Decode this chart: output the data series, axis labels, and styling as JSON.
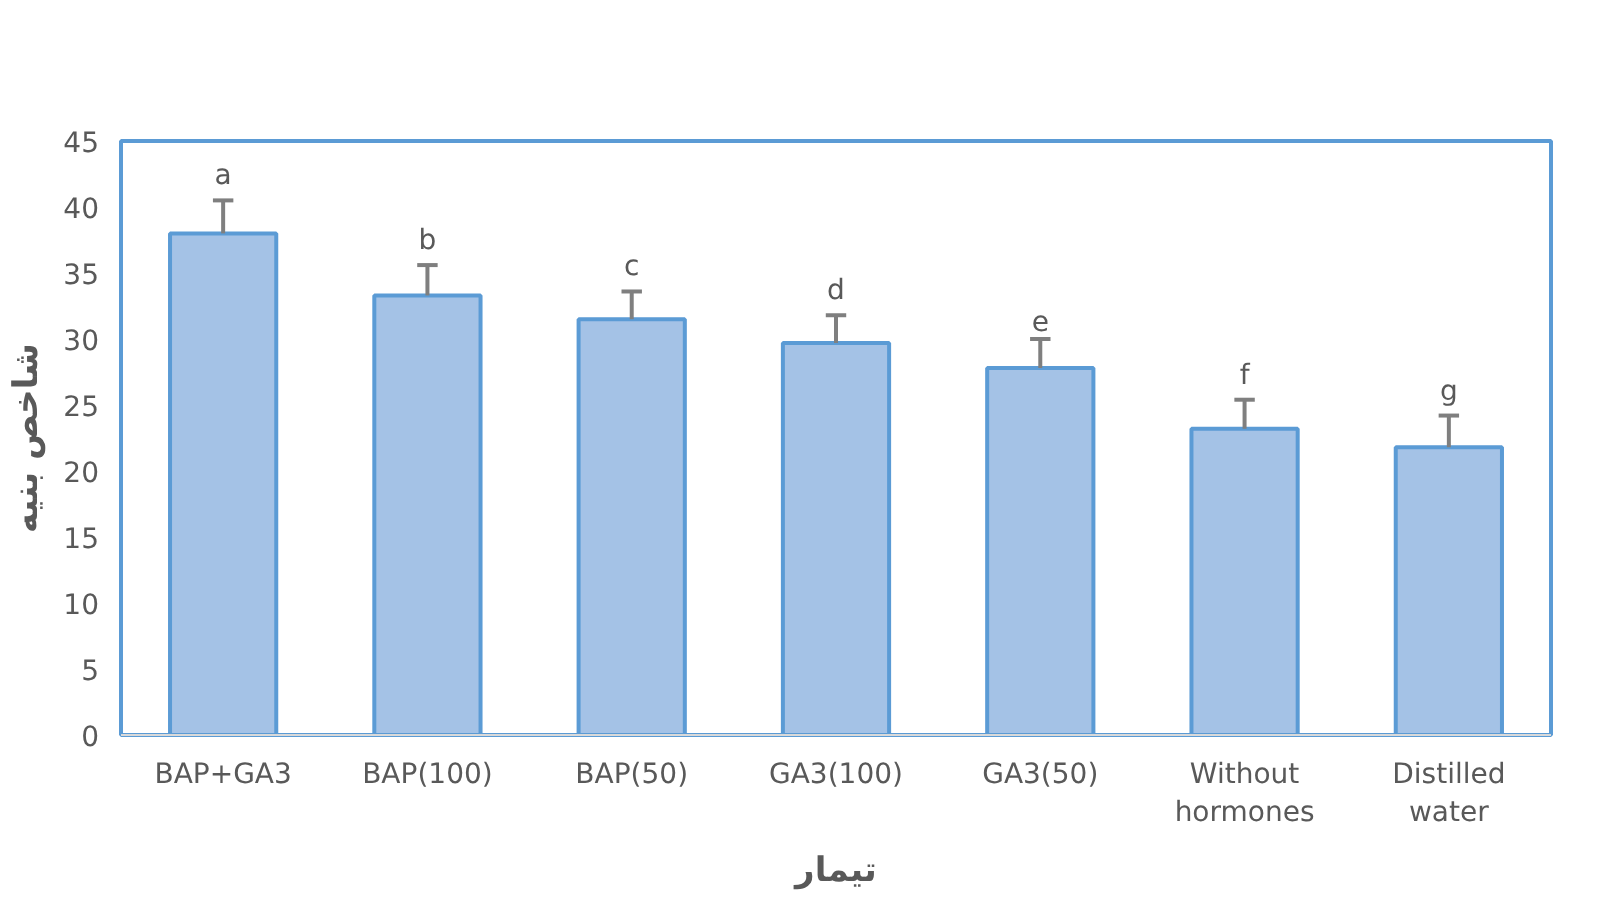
{
  "chart_data": {
    "type": "bar",
    "xlabel": "تیمار",
    "ylabel": "شاخص بنیه",
    "categories": [
      "BAP+GA3",
      "BAP(100)",
      "BAP(50)",
      "GA3(100)",
      "GA3(50)",
      "Without hormones",
      "Distilled water"
    ],
    "values": [
      38.0,
      33.3,
      31.5,
      29.7,
      27.8,
      23.2,
      21.8
    ],
    "errors": [
      [
        38.0,
        40.5
      ],
      [
        33.3,
        35.6
      ],
      [
        31.5,
        33.6
      ],
      [
        29.7,
        31.8
      ],
      [
        27.8,
        30.0
      ],
      [
        23.2,
        25.4
      ],
      [
        21.8,
        24.2
      ]
    ],
    "color": "#a4c2e6",
    "ylim": [
      0,
      45
    ],
    "yticks": [
      0,
      5,
      10,
      15,
      20,
      25,
      30,
      35,
      40,
      45
    ],
    "grid": false,
    "annotations": [
      {
        "text": "a",
        "x": "BAP+GA3",
        "y": 40.5
      },
      {
        "text": "b",
        "x": "BAP(100)",
        "y": 35.6
      },
      {
        "text": "c",
        "x": "BAP(50)",
        "y": 33.6
      },
      {
        "text": "d",
        "x": "GA3(100)",
        "y": 31.8
      },
      {
        "text": "e",
        "x": "GA3(50)",
        "y": 30.0
      },
      {
        "text": "f",
        "x": "Without hormones",
        "y": 25.4
      },
      {
        "text": "g",
        "x": "Distilled water",
        "y": 24.2
      }
    ]
  }
}
